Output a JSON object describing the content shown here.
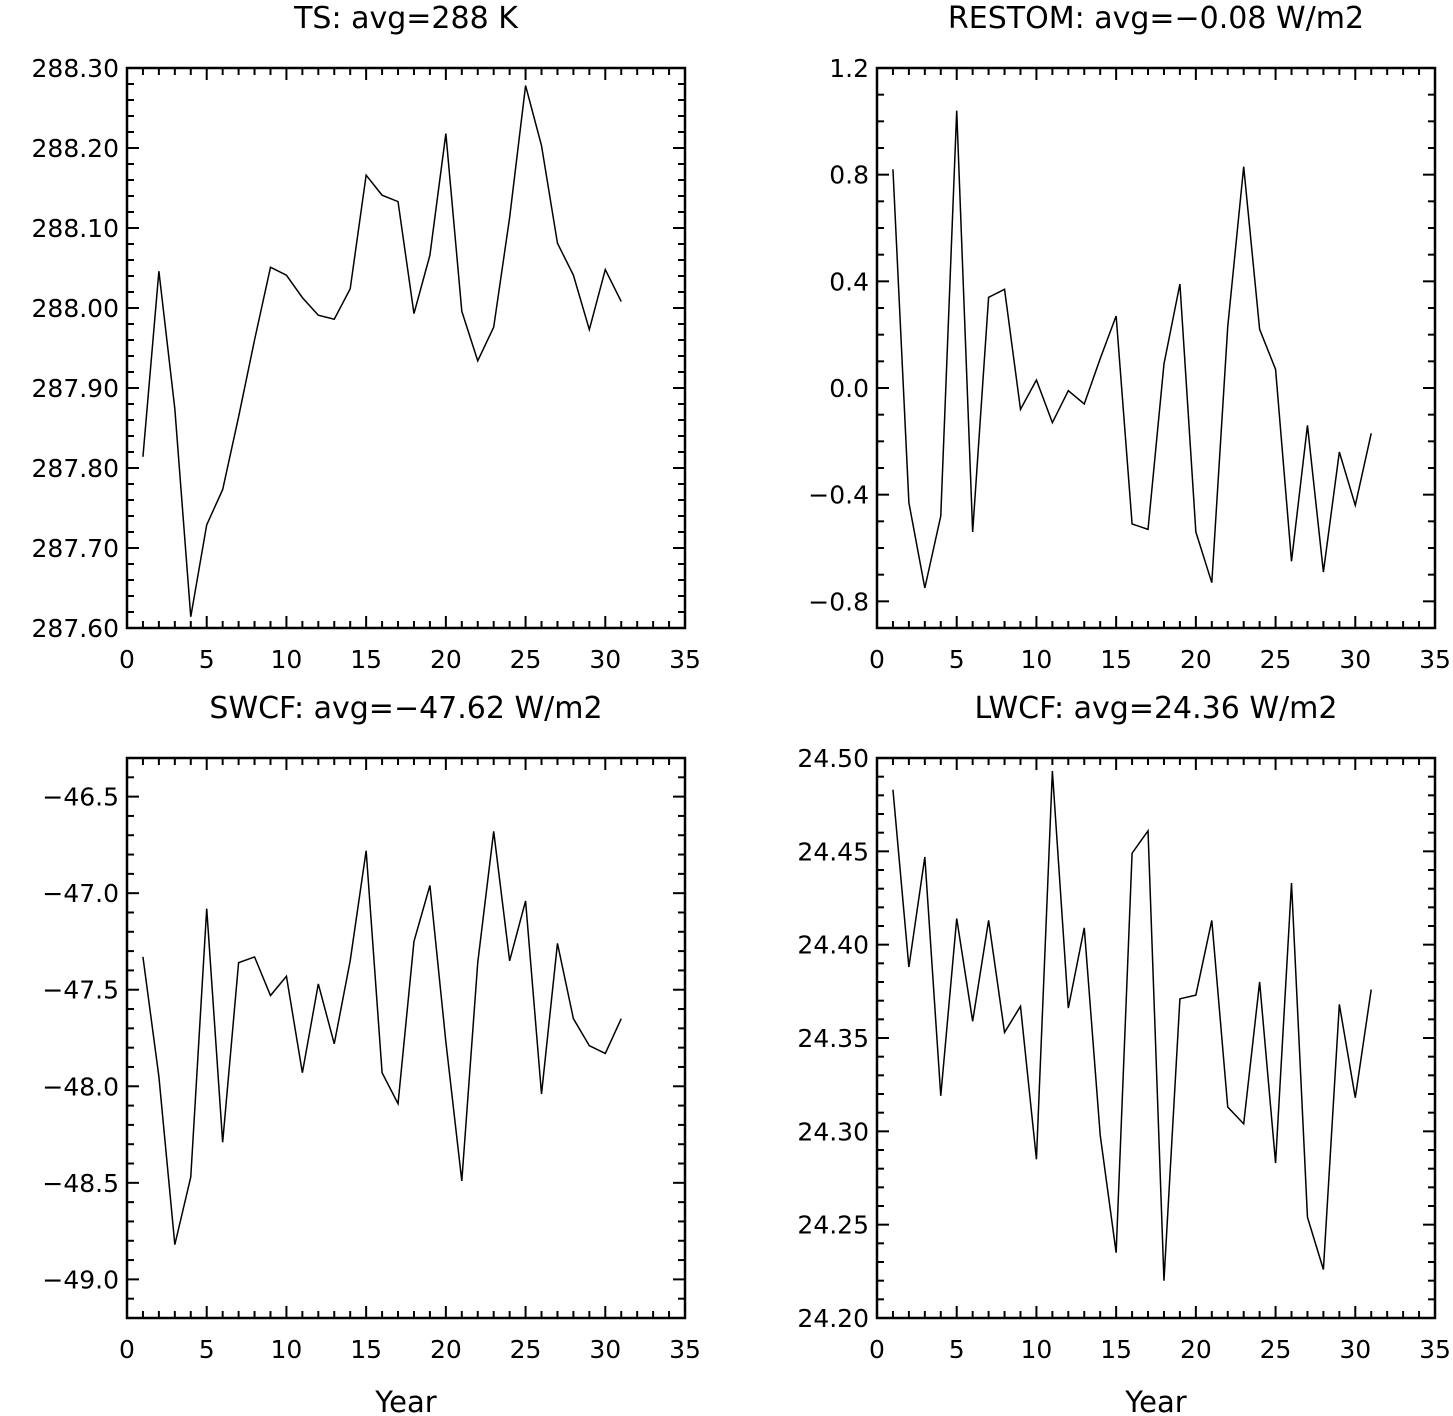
{
  "chart_data": [
    {
      "type": "line",
      "title": "TS: avg=288 K",
      "xlabel": "",
      "ylabel": "",
      "xlim": [
        0,
        35
      ],
      "ylim": [
        287.6,
        288.3
      ],
      "x_ticks": [
        0,
        5,
        10,
        15,
        20,
        25,
        30,
        35
      ],
      "x_tick_labels": [
        "0",
        "5",
        "10",
        "15",
        "20",
        "25",
        "30",
        "35"
      ],
      "y_ticks": [
        287.6,
        287.7,
        287.8,
        287.9,
        288.0,
        288.1,
        288.2,
        288.3
      ],
      "y_tick_labels": [
        "287.60",
        "287.70",
        "287.80",
        "287.90",
        "288.00",
        "288.10",
        "288.20",
        "288.30"
      ],
      "y_minor_step": 0.02,
      "grid": false,
      "x": [
        1,
        2,
        3,
        4,
        5,
        6,
        7,
        8,
        9,
        10,
        11,
        12,
        13,
        14,
        15,
        16,
        17,
        18,
        19,
        20,
        21,
        22,
        23,
        24,
        25,
        26,
        27,
        28,
        29,
        30,
        31
      ],
      "values": [
        287.814,
        288.046,
        287.874,
        287.614,
        287.729,
        287.773,
        287.864,
        287.96,
        288.051,
        288.041,
        288.013,
        287.991,
        287.986,
        288.024,
        288.166,
        288.141,
        288.133,
        287.993,
        288.066,
        288.218,
        287.996,
        287.934,
        287.976,
        288.113,
        288.278,
        288.203,
        288.081,
        288.041,
        287.973,
        288.048,
        288.008
      ]
    },
    {
      "type": "line",
      "title": "RESTOM: avg=−0.08 W/m2",
      "xlabel": "",
      "ylabel": "",
      "xlim": [
        0,
        35
      ],
      "ylim": [
        -0.9,
        1.2
      ],
      "x_ticks": [
        0,
        5,
        10,
        15,
        20,
        25,
        30,
        35
      ],
      "x_tick_labels": [
        "0",
        "5",
        "10",
        "15",
        "20",
        "25",
        "30",
        "35"
      ],
      "y_ticks": [
        -0.8,
        -0.4,
        0.0,
        0.4,
        0.8,
        1.2
      ],
      "y_tick_labels": [
        "−0.8",
        "−0.4",
        "0.0",
        "0.4",
        "0.8",
        "1.2"
      ],
      "y_minor_step": 0.1,
      "grid": false,
      "x": [
        1,
        2,
        3,
        4,
        5,
        6,
        7,
        8,
        9,
        10,
        11,
        12,
        13,
        14,
        15,
        16,
        17,
        18,
        19,
        20,
        21,
        22,
        23,
        24,
        25,
        26,
        27,
        28,
        29,
        30,
        31
      ],
      "values": [
        0.82,
        -0.43,
        -0.75,
        -0.48,
        1.04,
        -0.54,
        0.34,
        0.37,
        -0.08,
        0.03,
        -0.13,
        -0.01,
        -0.06,
        0.11,
        0.27,
        -0.51,
        -0.53,
        0.09,
        0.39,
        -0.54,
        -0.73,
        0.23,
        0.83,
        0.22,
        0.07,
        -0.65,
        -0.14,
        -0.69,
        -0.24,
        -0.44,
        -0.17
      ]
    },
    {
      "type": "line",
      "title": "SWCF: avg=−47.62 W/m2",
      "xlabel": "Year",
      "ylabel": "",
      "xlim": [
        0,
        35
      ],
      "ylim": [
        -49.2,
        -46.3
      ],
      "x_ticks": [
        0,
        5,
        10,
        15,
        20,
        25,
        30,
        35
      ],
      "x_tick_labels": [
        "0",
        "5",
        "10",
        "15",
        "20",
        "25",
        "30",
        "35"
      ],
      "y_ticks": [
        -49.0,
        -48.5,
        -48.0,
        -47.5,
        -47.0,
        -46.5
      ],
      "y_tick_labels": [
        "−49.0",
        "−48.5",
        "−48.0",
        "−47.5",
        "−47.0",
        "−46.5"
      ],
      "y_minor_step": 0.1,
      "grid": false,
      "x": [
        1,
        2,
        3,
        4,
        5,
        6,
        7,
        8,
        9,
        10,
        11,
        12,
        13,
        14,
        15,
        16,
        17,
        18,
        19,
        20,
        21,
        22,
        23,
        24,
        25,
        26,
        27,
        28,
        29,
        30,
        31
      ],
      "values": [
        -47.33,
        -47.95,
        -48.82,
        -48.47,
        -47.08,
        -48.29,
        -47.36,
        -47.33,
        -47.53,
        -47.43,
        -47.93,
        -47.47,
        -47.78,
        -47.35,
        -46.78,
        -47.93,
        -48.09,
        -47.25,
        -46.96,
        -47.77,
        -48.49,
        -47.36,
        -46.68,
        -47.35,
        -47.04,
        -48.04,
        -47.26,
        -47.65,
        -47.79,
        -47.83,
        -47.65
      ]
    },
    {
      "type": "line",
      "title": "LWCF: avg=24.36 W/m2",
      "xlabel": "Year",
      "ylabel": "",
      "xlim": [
        0,
        35
      ],
      "ylim": [
        24.2,
        24.5
      ],
      "x_ticks": [
        0,
        5,
        10,
        15,
        20,
        25,
        30,
        35
      ],
      "x_tick_labels": [
        "0",
        "5",
        "10",
        "15",
        "20",
        "25",
        "30",
        "35"
      ],
      "y_ticks": [
        24.2,
        24.25,
        24.3,
        24.35,
        24.4,
        24.45,
        24.5
      ],
      "y_tick_labels": [
        "24.20",
        "24.25",
        "24.30",
        "24.35",
        "24.40",
        "24.45",
        "24.50"
      ],
      "y_minor_step": 0.01,
      "grid": false,
      "x": [
        1,
        2,
        3,
        4,
        5,
        6,
        7,
        8,
        9,
        10,
        11,
        12,
        13,
        14,
        15,
        16,
        17,
        18,
        19,
        20,
        21,
        22,
        23,
        24,
        25,
        26,
        27,
        28,
        29,
        30,
        31
      ],
      "values": [
        24.483,
        24.388,
        24.447,
        24.319,
        24.414,
        24.359,
        24.413,
        24.353,
        24.367,
        24.285,
        24.493,
        24.366,
        24.409,
        24.298,
        24.235,
        24.449,
        24.461,
        24.22,
        24.371,
        24.373,
        24.413,
        24.313,
        24.304,
        24.38,
        24.283,
        24.433,
        24.254,
        24.226,
        24.368,
        24.318,
        24.376
      ]
    }
  ]
}
